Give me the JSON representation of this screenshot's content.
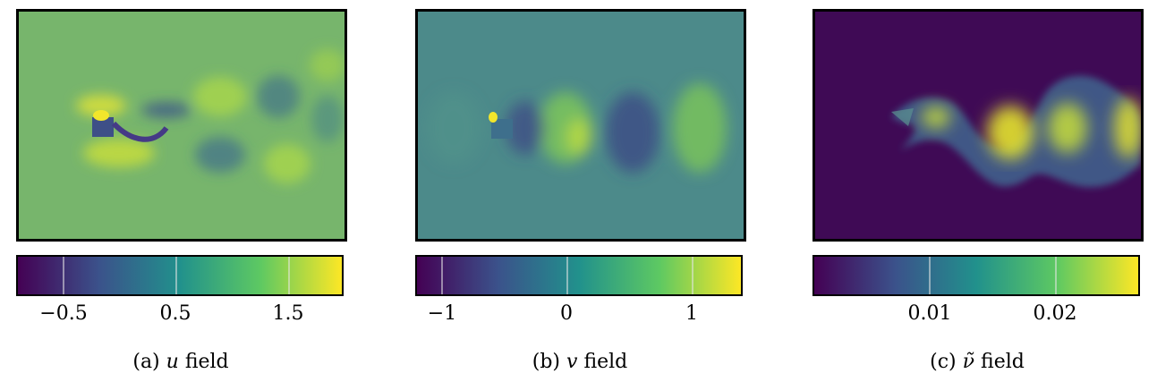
{
  "colors": {
    "viridis": [
      "#440154",
      "#3b528b",
      "#21918c",
      "#5ec962",
      "#fde725"
    ],
    "u_background": "#77b56c",
    "v_background": "#4c8a8a",
    "nu_background": "#3f0a55",
    "frame": "#000000"
  },
  "panels": [
    {
      "caption_prefix": "(a)",
      "variable": "u",
      "caption_suffix": "field",
      "colorbar_ticks": [
        "−0.5",
        "0.5",
        "1.5"
      ]
    },
    {
      "caption_prefix": "(b)",
      "variable": "v",
      "caption_suffix": "field",
      "colorbar_ticks": [
        "−1",
        "0",
        "1"
      ]
    },
    {
      "caption_prefix": "(c)",
      "variable": "ν̃",
      "caption_suffix": "field",
      "colorbar_ticks": [
        "0.01",
        "0.02"
      ]
    }
  ]
}
